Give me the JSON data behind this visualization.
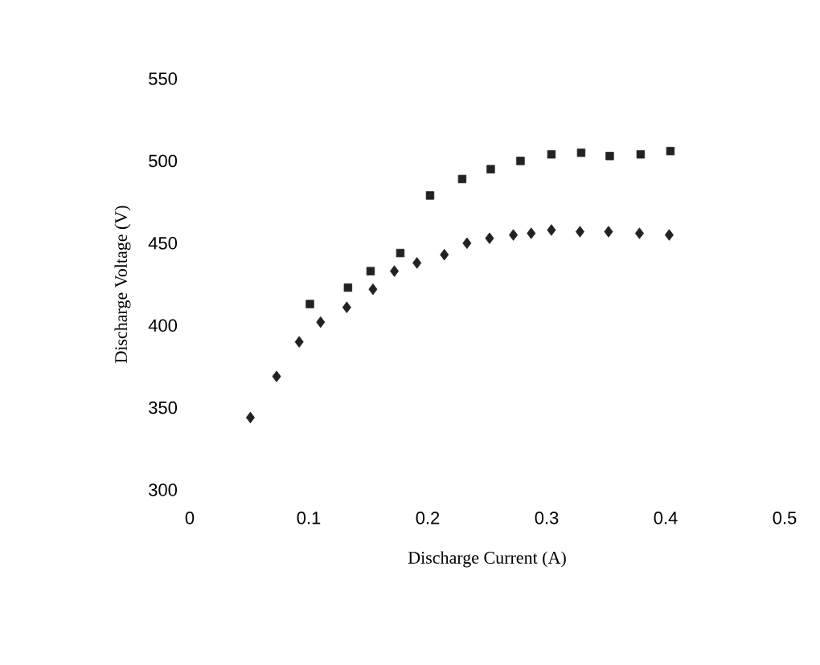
{
  "chart_data": {
    "type": "scatter",
    "xlabel": "Discharge Current (A)",
    "ylabel": "Discharge Voltage (V)",
    "xlim": [
      0,
      0.5
    ],
    "ylim": [
      300,
      550
    ],
    "xticks": [
      0,
      0.1,
      0.2,
      0.3,
      0.4,
      0.5
    ],
    "yticks": [
      300,
      350,
      400,
      450,
      500,
      550
    ],
    "series": [
      {
        "color": "#222222",
        "marker": "square",
        "x": [
          0.101,
          0.133,
          0.152,
          0.177,
          0.202,
          0.229,
          0.253,
          0.278,
          0.304,
          0.329,
          0.353,
          0.379,
          0.404
        ],
        "values": [
          413,
          423,
          433,
          444,
          479,
          489,
          495,
          500,
          504,
          505,
          503,
          504,
          506
        ]
      },
      {
        "color": "#222222",
        "marker": "diamond",
        "x": [
          0.051,
          0.073,
          0.092,
          0.11,
          0.132,
          0.154,
          0.172,
          0.191,
          0.214,
          0.233,
          0.252,
          0.272,
          0.287,
          0.304,
          0.328,
          0.352,
          0.378,
          0.403
        ],
        "values": [
          344,
          369,
          390,
          402,
          411,
          422,
          433,
          438,
          443,
          450,
          453,
          455,
          456,
          458,
          457,
          457,
          456,
          455
        ]
      }
    ]
  }
}
